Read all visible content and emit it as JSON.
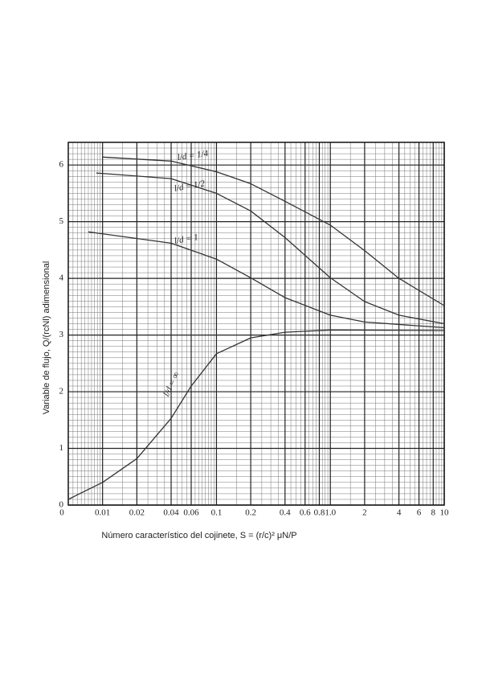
{
  "chart_data": {
    "type": "line",
    "xlabel": "Número característico del cojinete, S = (r/c)² μN/P",
    "ylabel": "Variable de flujo, Q/(rcNl) adimensional",
    "x_origin_label": "0",
    "xscale": "log",
    "xlim": [
      0.005,
      10
    ],
    "ylim": [
      0,
      6.4
    ],
    "xticks": [
      0.01,
      0.02,
      0.04,
      0.06,
      0.1,
      0.2,
      0.4,
      0.6,
      0.8,
      {
        "value": 1,
        "label": "1.0"
      },
      2,
      4,
      6,
      8,
      10
    ],
    "yticks": [
      0,
      1,
      2,
      3,
      4,
      5,
      6
    ],
    "grid": true,
    "series": [
      {
        "name": "l/d = 1/4",
        "color": "#333333",
        "x": [
          0.01,
          0.04,
          0.1,
          0.2,
          0.4,
          1,
          2,
          4,
          10
        ],
        "values": [
          6.14,
          6.07,
          5.88,
          5.67,
          5.36,
          4.94,
          4.49,
          4.0,
          3.52
        ]
      },
      {
        "name": "l/d = 1/2",
        "color": "#333333",
        "x": [
          0.0088,
          0.04,
          0.1,
          0.2,
          0.4,
          1,
          2,
          4,
          10
        ],
        "values": [
          5.86,
          5.76,
          5.5,
          5.19,
          4.72,
          4.01,
          3.59,
          3.35,
          3.2
        ]
      },
      {
        "name": "l/d = 1",
        "color": "#333333",
        "x": [
          0.0075,
          0.04,
          0.1,
          0.2,
          0.4,
          1,
          2,
          10
        ],
        "values": [
          4.82,
          4.62,
          4.34,
          4.01,
          3.66,
          3.35,
          3.23,
          3.13
        ]
      },
      {
        "name": "l/d = ∞",
        "color": "#333333",
        "x": [
          0.005,
          0.006,
          0.01,
          0.02,
          0.04,
          0.06,
          0.1,
          0.2,
          0.4,
          1,
          10
        ],
        "values": [
          0.1,
          0.18,
          0.4,
          0.82,
          1.53,
          2.1,
          2.67,
          2.95,
          3.05,
          3.09,
          3.08
        ]
      }
    ]
  }
}
